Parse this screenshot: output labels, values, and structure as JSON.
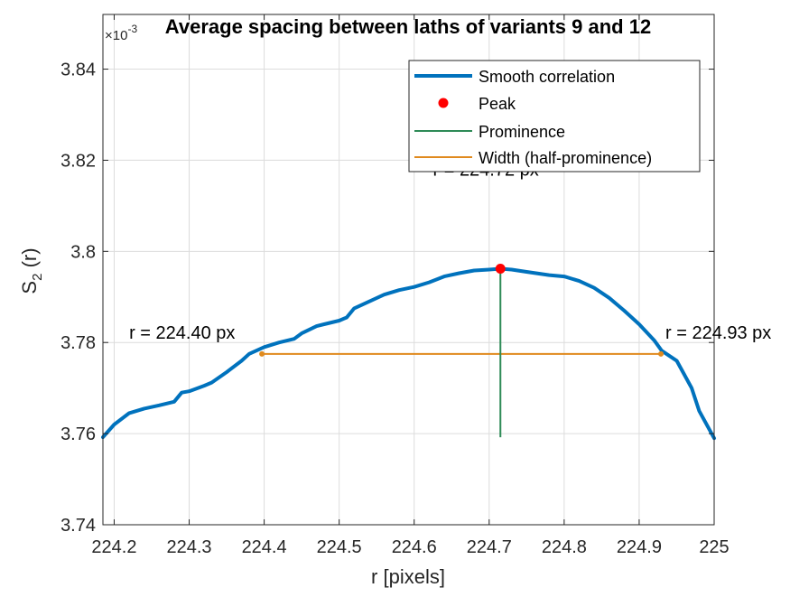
{
  "chart_data": {
    "type": "line",
    "title": "Average spacing between laths of variants 9 and 12",
    "xlabel": "r [pixels]",
    "ylabel_base": "S",
    "ylabel_sub": "2",
    "ylabel_rest": " (r)",
    "y_exponent_base": "×10",
    "y_exponent_power": "-3",
    "xlim": [
      224.185,
      225.0
    ],
    "ylim": [
      3.74,
      3.852
    ],
    "xticks": [
      224.2,
      224.3,
      224.4,
      224.5,
      224.6,
      224.7,
      224.8,
      224.9,
      225
    ],
    "xtick_labels": [
      "224.2",
      "224.3",
      "224.4",
      "224.5",
      "224.6",
      "224.7",
      "224.8",
      "224.9",
      "225"
    ],
    "yticks": [
      3.74,
      3.76,
      3.78,
      3.8,
      3.82,
      3.84
    ],
    "ytick_labels": [
      "3.74",
      "3.76",
      "3.78",
      "3.8",
      "3.82",
      "3.84"
    ],
    "grid": true,
    "legend_position": "top-right",
    "series": [
      {
        "name": "Smooth correlation",
        "color": "#0072BD",
        "x": [
          224.185,
          224.2,
          224.22,
          224.24,
          224.26,
          224.28,
          224.29,
          224.3,
          224.32,
          224.33,
          224.35,
          224.37,
          224.38,
          224.4,
          224.42,
          224.44,
          224.45,
          224.47,
          224.48,
          224.5,
          224.51,
          224.52,
          224.54,
          224.56,
          224.58,
          224.6,
          224.62,
          224.64,
          224.66,
          224.68,
          224.7,
          224.715,
          224.73,
          224.75,
          224.78,
          224.8,
          224.82,
          224.84,
          224.86,
          224.88,
          224.9,
          224.92,
          224.93,
          224.95,
          224.96,
          224.97,
          224.98,
          225.0
        ],
        "y": [
          3.7592,
          3.762,
          3.7645,
          3.7655,
          3.7662,
          3.767,
          3.769,
          3.7693,
          3.7705,
          3.7712,
          3.7735,
          3.776,
          3.7775,
          3.779,
          3.78,
          3.7808,
          3.782,
          3.7836,
          3.784,
          3.7848,
          3.7855,
          3.7875,
          3.789,
          3.7905,
          3.7915,
          3.7922,
          3.7932,
          3.7945,
          3.7952,
          3.7958,
          3.796,
          3.7962,
          3.796,
          3.7955,
          3.7948,
          3.7945,
          3.7935,
          3.792,
          3.7898,
          3.787,
          3.784,
          3.7805,
          3.7782,
          3.776,
          3.773,
          3.77,
          3.765,
          3.759
        ]
      }
    ],
    "peak": {
      "name": "Peak",
      "x": 224.715,
      "y": 3.7962,
      "color": "#FF0000"
    },
    "prominence": {
      "name": "Prominence",
      "x": 224.715,
      "y_from": 3.7592,
      "y_to": 3.7962,
      "color": "#2E8B57"
    },
    "width": {
      "name": "Width (half-prominence)",
      "x_from": 224.397,
      "x_to": 224.929,
      "y": 3.7775,
      "color": "#E08A1E"
    },
    "annotations": [
      {
        "text": "r = 224.72 px",
        "x": 224.625,
        "y": 3.8166
      },
      {
        "text": "r = 224.40 px",
        "x": 224.22,
        "y": 3.7808
      },
      {
        "text": "r = 224.93 px",
        "x": 224.935,
        "y": 3.7808
      }
    ]
  }
}
